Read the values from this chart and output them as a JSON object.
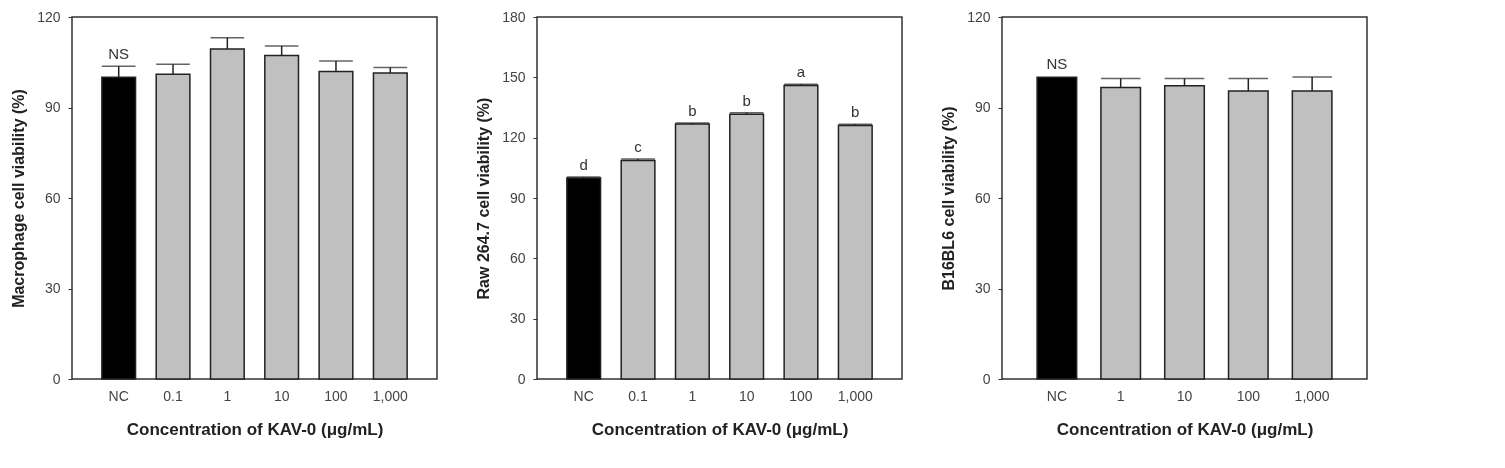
{
  "chart_data": [
    {
      "type": "bar",
      "xlabel": "Concentration of KAV-0 (μg/mL)",
      "ylabel": "Macrophage cell viability (%)",
      "categories": [
        "NC",
        "0.1",
        "1",
        "10",
        "100",
        "1,000"
      ],
      "values": [
        100,
        101,
        109.4,
        107.2,
        101.9,
        101.4
      ],
      "colors": [
        "#000000",
        "#c0c0c0",
        "#c0c0c0",
        "#c0c0c0",
        "#c0c0c0",
        "#c0c0c0"
      ],
      "errors": [
        [
          100,
          103.7
        ],
        [
          101,
          104.3
        ],
        [
          109.4,
          113.1
        ],
        [
          107.2,
          110.4
        ],
        [
          101.9,
          105.4
        ],
        [
          101.4,
          103.3
        ]
      ],
      "ylim": [
        0,
        120
      ],
      "yticks": [
        0,
        30,
        60,
        90,
        120
      ],
      "grid": false,
      "legend": false,
      "annotations": [
        {
          "text": "NS",
          "x": "NC",
          "y": 103.7
        }
      ]
    },
    {
      "type": "bar",
      "xlabel": "Concentration of KAV-0 (μg/mL)",
      "ylabel": "Raw 264.7 cell viability (%)",
      "categories": [
        "NC",
        "0.1",
        "1",
        "10",
        "100",
        "1,000"
      ],
      "values": [
        100,
        108.6,
        126.8,
        131.7,
        145.9,
        126
      ],
      "colors": [
        "#000000",
        "#c0c0c0",
        "#c0c0c0",
        "#c0c0c0",
        "#c0c0c0",
        "#c0c0c0"
      ],
      "errors": [
        [
          100,
          100.5
        ],
        [
          108.6,
          109.4
        ],
        [
          126.8,
          127.3
        ],
        [
          131.7,
          132.4
        ],
        [
          145.9,
          146.6
        ],
        [
          126,
          126.7
        ]
      ],
      "ylim": [
        0,
        180
      ],
      "yticks": [
        0,
        30,
        60,
        90,
        120,
        150,
        180
      ],
      "grid": false,
      "legend": false,
      "annotations": [
        {
          "text": "d",
          "x": "NC",
          "y": 100.5
        },
        {
          "text": "c",
          "x": "0.1",
          "y": 109.4
        },
        {
          "text": "b",
          "x": "1",
          "y": 127.3
        },
        {
          "text": "b",
          "x": "10",
          "y": 132.4
        },
        {
          "text": "a",
          "x": "100",
          "y": 146.6
        },
        {
          "text": "b",
          "x": "1,000",
          "y": 126.7
        }
      ]
    },
    {
      "type": "bar",
      "xlabel": "Concentration of KAV-0 (μg/mL)",
      "ylabel": "B16BL6 cell viability (%)",
      "categories": [
        "NC",
        "1",
        "10",
        "100",
        "1,000"
      ],
      "values": [
        100,
        96.6,
        97.2,
        95.5,
        95.5
      ],
      "colors": [
        "#000000",
        "#c0c0c0",
        "#c0c0c0",
        "#c0c0c0",
        "#c0c0c0"
      ],
      "errors": [
        null,
        [
          96.6,
          99.6
        ],
        [
          97.2,
          99.6
        ],
        [
          95.5,
          99.6
        ],
        [
          95.5,
          100.1
        ]
      ],
      "ylim": [
        0,
        120
      ],
      "yticks": [
        0,
        30,
        60,
        90,
        120
      ],
      "grid": false,
      "legend": false,
      "annotations": [
        {
          "text": "NS",
          "x": "NC",
          "y": 100.3
        }
      ]
    }
  ]
}
